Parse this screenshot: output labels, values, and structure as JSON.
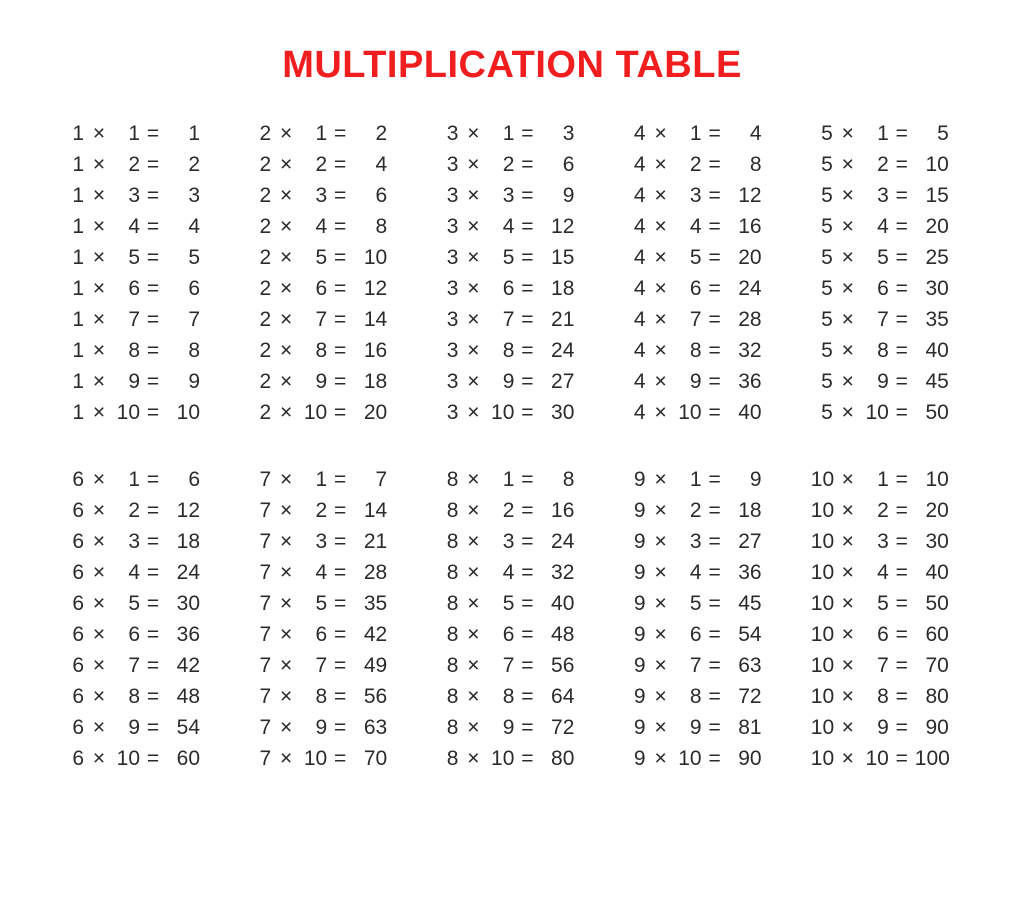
{
  "title": "MULTIPLICATION TABLE",
  "title_color": "#f01e1e",
  "title_fontsize": 38,
  "text_color": "#2b2b2b",
  "eq_fontsize": 21,
  "background_color": "#ffffff",
  "times_symbol": "×",
  "equals_symbol": "=",
  "col_widths": {
    "a": 22,
    "op_times": 30,
    "b": 26,
    "op_eq": 26,
    "r": 34
  },
  "tables": [
    {
      "n": 1,
      "rows": [
        [
          1,
          1,
          1
        ],
        [
          1,
          2,
          2
        ],
        [
          1,
          3,
          3
        ],
        [
          1,
          4,
          4
        ],
        [
          1,
          5,
          5
        ],
        [
          1,
          6,
          6
        ],
        [
          1,
          7,
          7
        ],
        [
          1,
          8,
          8
        ],
        [
          1,
          9,
          9
        ],
        [
          1,
          10,
          10
        ]
      ]
    },
    {
      "n": 2,
      "rows": [
        [
          2,
          1,
          2
        ],
        [
          2,
          2,
          4
        ],
        [
          2,
          3,
          6
        ],
        [
          2,
          4,
          8
        ],
        [
          2,
          5,
          10
        ],
        [
          2,
          6,
          12
        ],
        [
          2,
          7,
          14
        ],
        [
          2,
          8,
          16
        ],
        [
          2,
          9,
          18
        ],
        [
          2,
          10,
          20
        ]
      ]
    },
    {
      "n": 3,
      "rows": [
        [
          3,
          1,
          3
        ],
        [
          3,
          2,
          6
        ],
        [
          3,
          3,
          9
        ],
        [
          3,
          4,
          12
        ],
        [
          3,
          5,
          15
        ],
        [
          3,
          6,
          18
        ],
        [
          3,
          7,
          21
        ],
        [
          3,
          8,
          24
        ],
        [
          3,
          9,
          27
        ],
        [
          3,
          10,
          30
        ]
      ]
    },
    {
      "n": 4,
      "rows": [
        [
          4,
          1,
          4
        ],
        [
          4,
          2,
          8
        ],
        [
          4,
          3,
          12
        ],
        [
          4,
          4,
          16
        ],
        [
          4,
          5,
          20
        ],
        [
          4,
          6,
          24
        ],
        [
          4,
          7,
          28
        ],
        [
          4,
          8,
          32
        ],
        [
          4,
          9,
          36
        ],
        [
          4,
          10,
          40
        ]
      ]
    },
    {
      "n": 5,
      "rows": [
        [
          5,
          1,
          5
        ],
        [
          5,
          2,
          10
        ],
        [
          5,
          3,
          15
        ],
        [
          5,
          4,
          20
        ],
        [
          5,
          5,
          25
        ],
        [
          5,
          6,
          30
        ],
        [
          5,
          7,
          35
        ],
        [
          5,
          8,
          40
        ],
        [
          5,
          9,
          45
        ],
        [
          5,
          10,
          50
        ]
      ]
    },
    {
      "n": 6,
      "rows": [
        [
          6,
          1,
          6
        ],
        [
          6,
          2,
          12
        ],
        [
          6,
          3,
          18
        ],
        [
          6,
          4,
          24
        ],
        [
          6,
          5,
          30
        ],
        [
          6,
          6,
          36
        ],
        [
          6,
          7,
          42
        ],
        [
          6,
          8,
          48
        ],
        [
          6,
          9,
          54
        ],
        [
          6,
          10,
          60
        ]
      ]
    },
    {
      "n": 7,
      "rows": [
        [
          7,
          1,
          7
        ],
        [
          7,
          2,
          14
        ],
        [
          7,
          3,
          21
        ],
        [
          7,
          4,
          28
        ],
        [
          7,
          5,
          35
        ],
        [
          7,
          6,
          42
        ],
        [
          7,
          7,
          49
        ],
        [
          7,
          8,
          56
        ],
        [
          7,
          9,
          63
        ],
        [
          7,
          10,
          70
        ]
      ]
    },
    {
      "n": 8,
      "rows": [
        [
          8,
          1,
          8
        ],
        [
          8,
          2,
          16
        ],
        [
          8,
          3,
          24
        ],
        [
          8,
          4,
          32
        ],
        [
          8,
          5,
          40
        ],
        [
          8,
          6,
          48
        ],
        [
          8,
          7,
          56
        ],
        [
          8,
          8,
          64
        ],
        [
          8,
          9,
          72
        ],
        [
          8,
          10,
          80
        ]
      ]
    },
    {
      "n": 9,
      "rows": [
        [
          9,
          1,
          9
        ],
        [
          9,
          2,
          18
        ],
        [
          9,
          3,
          27
        ],
        [
          9,
          4,
          36
        ],
        [
          9,
          5,
          45
        ],
        [
          9,
          6,
          54
        ],
        [
          9,
          7,
          63
        ],
        [
          9,
          8,
          72
        ],
        [
          9,
          9,
          81
        ],
        [
          9,
          10,
          90
        ]
      ]
    },
    {
      "n": 10,
      "rows": [
        [
          10,
          1,
          10
        ],
        [
          10,
          2,
          20
        ],
        [
          10,
          3,
          30
        ],
        [
          10,
          4,
          40
        ],
        [
          10,
          5,
          50
        ],
        [
          10,
          6,
          60
        ],
        [
          10,
          7,
          70
        ],
        [
          10,
          8,
          80
        ],
        [
          10,
          9,
          90
        ],
        [
          10,
          10,
          100
        ]
      ]
    }
  ]
}
